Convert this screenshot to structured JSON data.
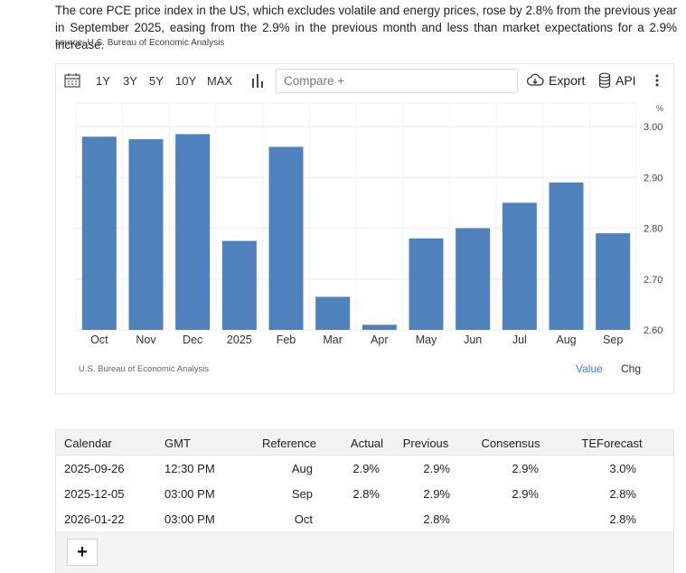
{
  "description": "The core PCE price index in the US, which excludes volatile and energy prices, rose by 2.8% from the previous year in September 2025, easing from the 2.9% in the previous month and less than market expectations for a 2.9% increase.",
  "source": "source: U.S. Bureau of Economic Analysis",
  "toolbar": {
    "ranges": [
      "1Y",
      "3Y",
      "5Y",
      "10Y",
      "MAX"
    ],
    "compare_placeholder": "Compare +",
    "export_label": "Export",
    "api_label": "API"
  },
  "colors": {
    "bar": "#4f81bd",
    "link": "#3a7dd8"
  },
  "chart_data": {
    "type": "bar",
    "unit": "%",
    "categories": [
      "Oct",
      "Nov",
      "Dec",
      "2025",
      "Feb",
      "Mar",
      "Apr",
      "May",
      "Jun",
      "Jul",
      "Aug",
      "Sep"
    ],
    "values": [
      2.98,
      2.975,
      2.985,
      2.775,
      2.96,
      2.665,
      2.61,
      2.78,
      2.8,
      2.85,
      2.89,
      2.79
    ],
    "yticks": [
      "3.00",
      "2.90",
      "2.80",
      "2.70",
      "2.60"
    ],
    "ylim": [
      2.6,
      3.0
    ],
    "grid": true,
    "y_axis_side": "right"
  },
  "chart_footer": {
    "credit": "U.S. Bureau of Economic Analysis",
    "value_label": "Value",
    "chg_label": "Chg"
  },
  "calendar": {
    "headers": [
      "Calendar",
      "GMT",
      "Reference",
      "Actual",
      "Previous",
      "Consensus",
      "TEForecast"
    ],
    "rows": [
      [
        "2025-09-26",
        "12:30 PM",
        "Aug",
        "2.9%",
        "2.9%",
        "2.9%",
        "3.0%"
      ],
      [
        "2025-12-05",
        "03:00 PM",
        "Sep",
        "2.8%",
        "2.9%",
        "2.9%",
        "2.8%"
      ],
      [
        "2026-01-22",
        "03:00 PM",
        "Oct",
        "",
        "2.8%",
        "",
        "2.8%"
      ]
    ],
    "add_label": "+"
  }
}
